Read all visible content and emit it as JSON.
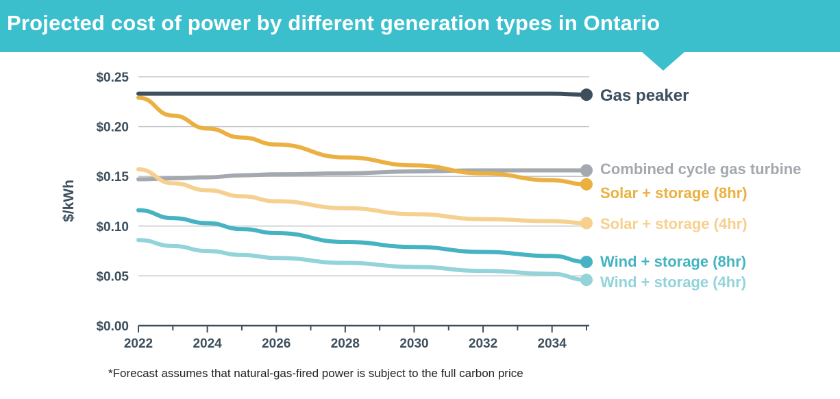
{
  "title": "Projected cost of power by different generation types in Ontario",
  "footnote": "*Forecast assumes that natural-gas-fired power is subject to the full carbon price",
  "colors": {
    "banner": "#3bbfcc",
    "axis": "#3d4f5c"
  },
  "chart_data": {
    "type": "line",
    "title": "Projected cost of power by different generation types in Ontario",
    "xlabel": "",
    "ylabel": "$/kWh",
    "xlim": [
      2022,
      2035
    ],
    "ylim": [
      0,
      0.25
    ],
    "grid": true,
    "legend": "right (direct labels at line ends)",
    "xticks": [
      "2022",
      "2024",
      "2026",
      "2028",
      "2030",
      "2032",
      "2034"
    ],
    "yticks": [
      "$0.00",
      "$0.05",
      "$0.10",
      "$0.15",
      "$0.20",
      "$0.25"
    ],
    "x": [
      2022,
      2023,
      2024,
      2025,
      2026,
      2028,
      2030,
      2032,
      2034,
      2035
    ],
    "series": [
      {
        "name": "Gas peaker",
        "color": "#3d4f5c",
        "values": [
          0.233,
          0.233,
          0.233,
          0.233,
          0.233,
          0.233,
          0.233,
          0.233,
          0.233,
          0.232
        ]
      },
      {
        "name": "Combined cycle gas turbine",
        "color": "#a3a9ae",
        "values": [
          0.147,
          0.148,
          0.149,
          0.151,
          0.152,
          0.153,
          0.155,
          0.156,
          0.156,
          0.156
        ]
      },
      {
        "name": "Solar + storage (8hr)",
        "color": "#ebb03f",
        "values": [
          0.229,
          0.211,
          0.198,
          0.189,
          0.182,
          0.169,
          0.161,
          0.153,
          0.146,
          0.142
        ]
      },
      {
        "name": "Solar + storage (4hr)",
        "color": "#f6d08f",
        "values": [
          0.157,
          0.143,
          0.136,
          0.13,
          0.125,
          0.118,
          0.112,
          0.107,
          0.105,
          0.103
        ]
      },
      {
        "name": "Wind + storage (8hr)",
        "color": "#45b3c1",
        "values": [
          0.116,
          0.108,
          0.103,
          0.097,
          0.093,
          0.084,
          0.079,
          0.074,
          0.07,
          0.064
        ]
      },
      {
        "name": "Wind + storage (4hr)",
        "color": "#93d3da",
        "values": [
          0.086,
          0.08,
          0.075,
          0.071,
          0.068,
          0.063,
          0.059,
          0.055,
          0.052,
          0.046
        ]
      }
    ]
  }
}
